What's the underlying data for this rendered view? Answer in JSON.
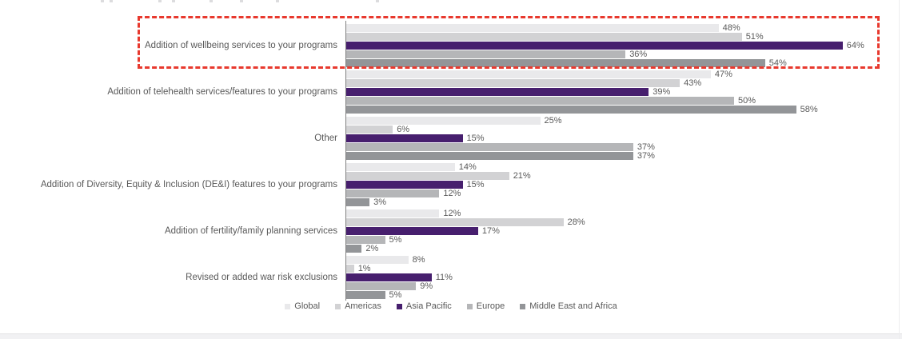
{
  "chart_data": {
    "type": "bar",
    "orientation": "horizontal",
    "title": "",
    "xlabel": "",
    "ylabel": "",
    "value_suffix": "%",
    "xlim": [
      0,
      69
    ],
    "grid": false,
    "legend_position": "bottom",
    "categories": [
      "Addition of wellbeing services to your programs",
      "Addition of telehealth services/features to your programs",
      "Other",
      "Addition of Diversity, Equity & Inclusion (DE&I) features to your programs",
      "Addition of fertility/family planning services",
      "Revised or added war risk exclusions"
    ],
    "series": [
      {
        "name": "Global",
        "color": "#e9e9eb",
        "values": [
          48,
          47,
          25,
          14,
          12,
          8
        ]
      },
      {
        "name": "Americas",
        "color": "#d2d2d4",
        "values": [
          51,
          43,
          6,
          21,
          28,
          1
        ]
      },
      {
        "name": "Asia Pacific",
        "color": "#471f6e",
        "values": [
          64,
          39,
          15,
          15,
          17,
          11
        ]
      },
      {
        "name": "Europe",
        "color": "#b5b6b8",
        "values": [
          36,
          50,
          37,
          12,
          5,
          9
        ]
      },
      {
        "name": "Middle East and Africa",
        "color": "#939598",
        "values": [
          54,
          58,
          37,
          3,
          2,
          5
        ]
      }
    ],
    "annotations": {
      "highlight": {
        "style": "red-dashed-rectangle",
        "color": "#e8392e",
        "category": "Addition of wellbeing services to your programs",
        "category_index": 0
      }
    }
  },
  "legend": {
    "items": [
      "Global",
      "Americas",
      "Asia Pacific",
      "Europe",
      "Middle East and Africa"
    ]
  }
}
